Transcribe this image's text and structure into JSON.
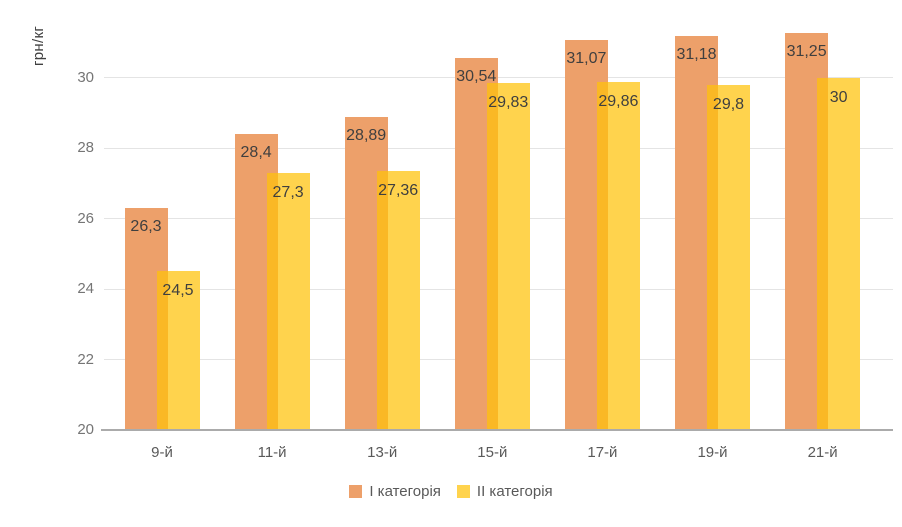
{
  "chart_data": {
    "type": "bar",
    "title": "",
    "xlabel": "",
    "ylabel": "грн/кг",
    "categories": [
      "9-й",
      "11-й",
      "13-й",
      "15-й",
      "17-й",
      "19-й",
      "21-й"
    ],
    "series": [
      {
        "name": "І категорія",
        "color": "#EDA06A",
        "values": [
          26.3,
          28.4,
          28.89,
          30.54,
          31.07,
          31.18,
          31.25
        ],
        "labels": [
          "26,3",
          "28,4",
          "28,89",
          "30,54",
          "31,07",
          "31,18",
          "31,25"
        ]
      },
      {
        "name": "ІІ категорія",
        "color": "#FFD34D",
        "values": [
          24.5,
          27.3,
          27.36,
          29.83,
          29.86,
          29.8,
          30
        ],
        "labels": [
          "24,5",
          "27,3",
          "27,36",
          "29,83",
          "29,86",
          "29,8",
          "30"
        ]
      }
    ],
    "overlap_color": "#FAB825",
    "y_ticks": [
      20,
      22,
      24,
      26,
      28,
      30
    ],
    "ylim": [
      20,
      32
    ],
    "grid": true,
    "legend_position": "bottom"
  }
}
